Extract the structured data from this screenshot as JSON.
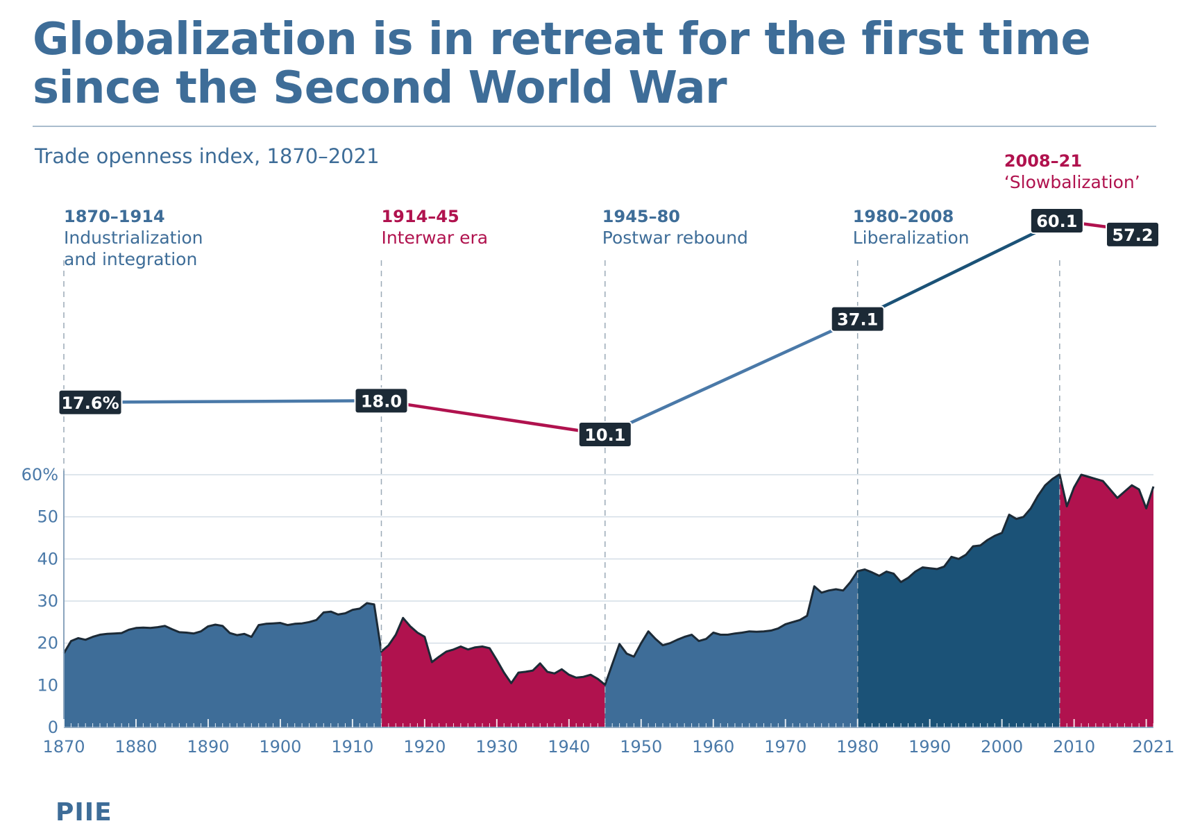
{
  "title": "Globalization is in retreat for the first time since the Second World War",
  "subtitle": "Trade openness index, 1870–2021",
  "source": "PIIE",
  "colors": {
    "blue": "#3e6d98",
    "dark_blue": "#1b5277",
    "crimson": "#b0124e",
    "navy_label": "#1c2a36",
    "outline": "#1c2a36",
    "grid": "#d4dde6"
  },
  "chart_data": [
    {
      "type": "line",
      "title": "",
      "eras": [
        {
          "range": "1870–1914",
          "name_lines": [
            "Industrialization",
            "and integration"
          ],
          "color": "#3e6d98"
        },
        {
          "range": "1914–45",
          "name_lines": [
            "Interwar era"
          ],
          "color": "#b0124e"
        },
        {
          "range": "1945–80",
          "name_lines": [
            "Postwar rebound"
          ],
          "color": "#3e6d98"
        },
        {
          "range": "1980–2008",
          "name_lines": [
            "Liberalization"
          ],
          "color": "#3e6d98"
        },
        {
          "range": "2008–21",
          "name_lines": [
            "‘Slowbalization’"
          ],
          "color": "#b0124e"
        }
      ],
      "x": [
        1870,
        1914,
        1945,
        1980,
        2008,
        2021
      ],
      "values": [
        17.6,
        18.0,
        10.1,
        37.1,
        60.1,
        57.2
      ],
      "value_labels": [
        "17.6%",
        "18.0",
        "10.1",
        "37.1",
        "60.1",
        "57.2"
      ],
      "segment_colors": [
        "#4a79a8",
        "#b0124e",
        "#4a79a8",
        "#1b5277",
        "#b0124e"
      ]
    },
    {
      "type": "area",
      "ylim": [
        0,
        60
      ],
      "y_ticks": [
        0,
        10,
        20,
        30,
        40,
        50,
        60
      ],
      "y_tick_labels": [
        "0",
        "10",
        "20",
        "30",
        "40",
        "50",
        "60%"
      ],
      "x_range": [
        1870,
        2021
      ],
      "x_ticks": [
        1870,
        1880,
        1890,
        1900,
        1910,
        1920,
        1930,
        1940,
        1950,
        1960,
        1970,
        1980,
        1990,
        2000,
        2010,
        2021
      ],
      "x_tick_labels": [
        "1870",
        "1880",
        "1890",
        "1900",
        "1910",
        "1920",
        "1930",
        "1940",
        "1950",
        "1960",
        "1970",
        "1980",
        "1990",
        "2000",
        "2010",
        "2021"
      ],
      "era_boundaries": [
        1914,
        1945,
        1980,
        2008
      ],
      "region_colors": [
        "#3e6d98",
        "#b0124e",
        "#3e6d98",
        "#1b5277",
        "#b0124e"
      ],
      "series": [
        {
          "x": [
            1870,
            1871,
            1872,
            1873,
            1874,
            1875,
            1876,
            1877,
            1878,
            1879,
            1880,
            1881,
            1882,
            1883,
            1884,
            1885,
            1886,
            1887,
            1888,
            1889,
            1890,
            1891,
            1892,
            1893,
            1894,
            1895,
            1896,
            1897,
            1898,
            1899,
            1900,
            1901,
            1902,
            1903,
            1904,
            1905,
            1906,
            1907,
            1908,
            1909,
            1910,
            1911,
            1912,
            1913,
            1914,
            1915,
            1916,
            1917,
            1918,
            1919,
            1920,
            1921,
            1922,
            1923,
            1924,
            1925,
            1926,
            1927,
            1928,
            1929,
            1930,
            1931,
            1932,
            1933,
            1934,
            1935,
            1936,
            1937,
            1938,
            1939,
            1940,
            1941,
            1942,
            1943,
            1944,
            1945,
            1946,
            1947,
            1948,
            1949,
            1950,
            1951,
            1952,
            1953,
            1954,
            1955,
            1956,
            1957,
            1958,
            1959,
            1960,
            1961,
            1962,
            1963,
            1964,
            1965,
            1966,
            1967,
            1968,
            1969,
            1970,
            1971,
            1972,
            1973,
            1974,
            1975,
            1976,
            1977,
            1978,
            1979,
            1980,
            1981,
            1982,
            1983,
            1984,
            1985,
            1986,
            1987,
            1988,
            1989,
            1990,
            1991,
            1992,
            1993,
            1994,
            1995,
            1996,
            1997,
            1998,
            1999,
            2000,
            2001,
            2002,
            2003,
            2004,
            2005,
            2006,
            2007,
            2008,
            2009,
            2010,
            2011,
            2012,
            2013,
            2014,
            2015,
            2016,
            2017,
            2018,
            2019,
            2020,
            2021
          ],
          "values": [
            17.6,
            20.5,
            21.2,
            20.8,
            21.5,
            22.0,
            22.2,
            22.3,
            22.4,
            23.2,
            23.6,
            23.7,
            23.6,
            23.8,
            24.1,
            23.3,
            22.6,
            22.5,
            22.3,
            22.8,
            24.0,
            24.4,
            24.1,
            22.4,
            21.9,
            22.2,
            21.5,
            24.3,
            24.6,
            24.7,
            24.8,
            24.3,
            24.6,
            24.7,
            25.0,
            25.5,
            27.3,
            27.5,
            26.8,
            27.1,
            27.9,
            28.2,
            29.5,
            29.2,
            18.0,
            19.5,
            22.0,
            26.0,
            24.0,
            22.5,
            21.5,
            15.5,
            16.8,
            18.0,
            18.5,
            19.2,
            18.5,
            19.0,
            19.2,
            18.8,
            16.0,
            13.0,
            10.5,
            13.0,
            13.2,
            13.5,
            15.2,
            13.2,
            12.8,
            13.8,
            12.5,
            11.8,
            12.0,
            12.5,
            11.5,
            10.1,
            15.0,
            19.8,
            17.5,
            16.8,
            20.0,
            22.8,
            21.0,
            19.5,
            20.0,
            20.8,
            21.5,
            22.0,
            20.5,
            21.0,
            22.5,
            22.0,
            22.0,
            22.3,
            22.5,
            22.8,
            22.7,
            22.8,
            23.0,
            23.5,
            24.5,
            25.0,
            25.5,
            26.5,
            33.5,
            32.0,
            32.5,
            32.8,
            32.5,
            34.5,
            37.1,
            37.5,
            36.8,
            36.0,
            37.0,
            36.5,
            34.5,
            35.5,
            37.0,
            38.0,
            37.8,
            37.6,
            38.2,
            40.5,
            40.0,
            41.0,
            43.0,
            43.2,
            44.5,
            45.5,
            46.2,
            50.5,
            49.5,
            50.0,
            52.0,
            55.0,
            57.5,
            59.0,
            60.1,
            52.5,
            57.0,
            60.0,
            59.5,
            59.0,
            58.5,
            56.5,
            54.5,
            56.0,
            57.5,
            56.5,
            52.0,
            57.2
          ]
        }
      ]
    }
  ]
}
